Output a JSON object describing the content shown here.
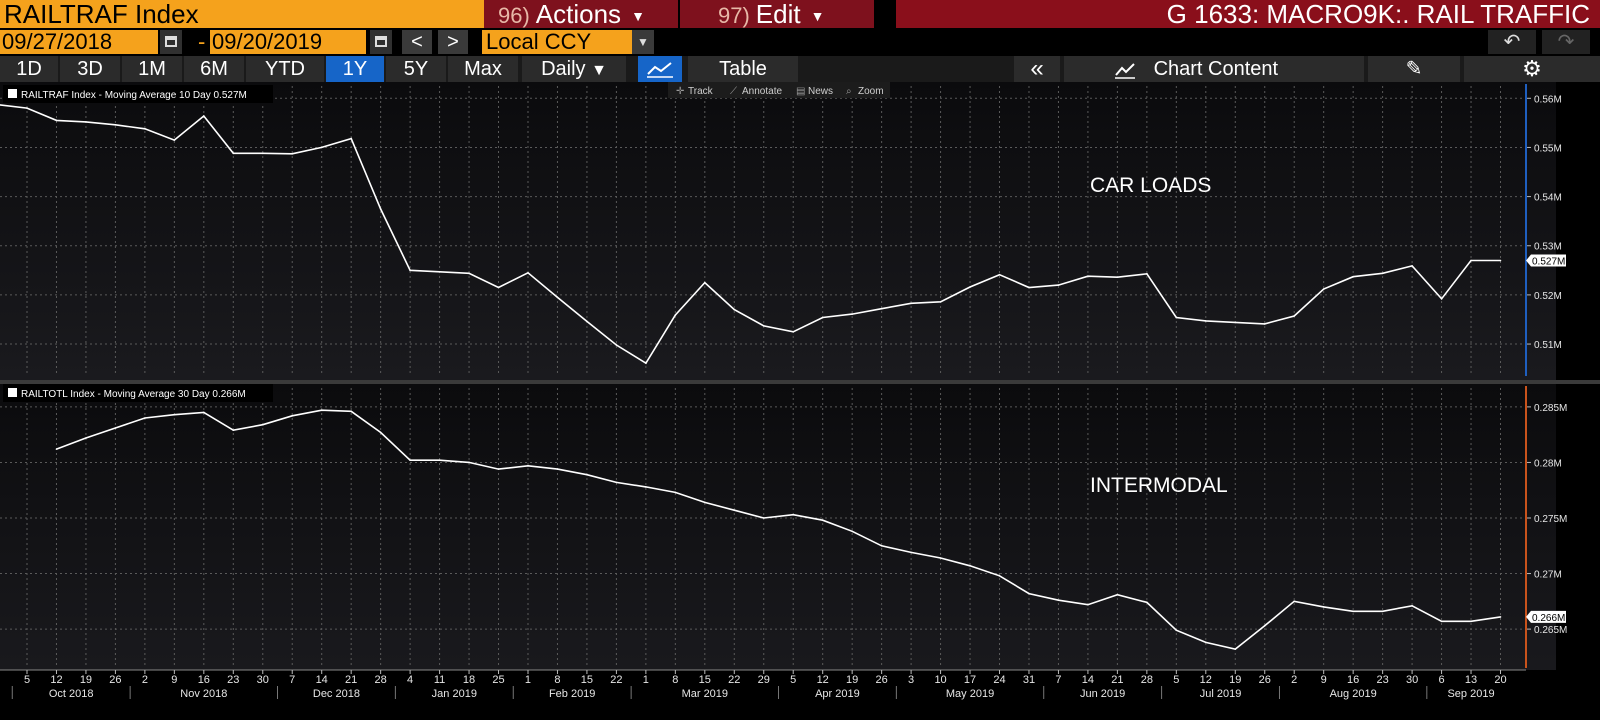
{
  "header": {
    "ticker": "RAILTRAF Index",
    "actions_num": "96)",
    "actions_label": "Actions",
    "edit_num": "97)",
    "edit_label": "Edit",
    "title": "G 1633: MACRO9K:. RAIL TRAFFIC"
  },
  "toolbar": {
    "start_date": "09/27/2018",
    "end_date": "09/20/2019",
    "date_sep": "-",
    "currency": "Local CCY",
    "prev": "<",
    "next": ">"
  },
  "ranges": [
    "1D",
    "3D",
    "1M",
    "6M",
    "YTD",
    "1Y",
    "5Y",
    "Max"
  ],
  "active_range": "1Y",
  "frequency": "Daily",
  "table_label": "Table",
  "chart_content_label": "Chart Content",
  "chart_tools": [
    "Track",
    "Annotate",
    "News",
    "Zoom"
  ],
  "colors": {
    "accent_orange": "#f5a21c",
    "menu_red": "#7e111d",
    "active_blue": "#1665c8",
    "line": "#ffffff",
    "grid": "#5a5a5a",
    "axis_right_top": "#1f5fbf",
    "axis_right_bottom": "#c9531c"
  },
  "chart_data": [
    {
      "type": "line",
      "panel": "top",
      "legend": "RAILTRAF Index - Moving Average 10 Day 0.527M",
      "annotation": "CAR LOADS",
      "last_value_label": "0.527M",
      "y_ticks": [
        "0.51M",
        "0.52M",
        "0.53M",
        "0.54M",
        "0.55M",
        "0.56M"
      ],
      "ylim": [
        0.5035,
        0.5625
      ],
      "x": [
        "2018-09-27",
        "2018-10-05",
        "2018-10-12",
        "2018-10-19",
        "2018-10-26",
        "2018-11-02",
        "2018-11-09",
        "2018-11-16",
        "2018-11-23",
        "2018-11-30",
        "2018-12-07",
        "2018-12-14",
        "2018-12-21",
        "2018-12-28",
        "2019-01-04",
        "2019-01-11",
        "2019-01-18",
        "2019-01-25",
        "2019-02-01",
        "2019-02-08",
        "2019-02-15",
        "2019-02-22",
        "2019-03-01",
        "2019-03-08",
        "2019-03-15",
        "2019-03-22",
        "2019-03-29",
        "2019-04-05",
        "2019-04-12",
        "2019-04-19",
        "2019-04-26",
        "2019-05-03",
        "2019-05-10",
        "2019-05-17",
        "2019-05-24",
        "2019-05-31",
        "2019-06-07",
        "2019-06-14",
        "2019-06-21",
        "2019-06-28",
        "2019-07-05",
        "2019-07-12",
        "2019-07-19",
        "2019-07-26",
        "2019-08-02",
        "2019-08-09",
        "2019-08-16",
        "2019-08-23",
        "2019-08-30",
        "2019-09-06",
        "2019-09-13",
        "2019-09-20"
      ],
      "values": [
        0.5588,
        0.558,
        0.5555,
        0.5552,
        0.5546,
        0.5538,
        0.5515,
        0.5564,
        0.5488,
        0.5488,
        0.5487,
        0.55,
        0.5518,
        0.5375,
        0.525,
        0.5247,
        0.5244,
        0.5215,
        0.5245,
        0.5195,
        0.5146,
        0.5098,
        0.5061,
        0.5159,
        0.5225,
        0.517,
        0.5137,
        0.5125,
        0.5154,
        0.5161,
        0.5172,
        0.5183,
        0.5186,
        0.5216,
        0.5241,
        0.5215,
        0.522,
        0.5238,
        0.5236,
        0.5243,
        0.5154,
        0.5147,
        0.5144,
        0.5141,
        0.5157,
        0.5212,
        0.5237,
        0.5244,
        0.5259,
        0.5192,
        0.527,
        0.527
      ]
    },
    {
      "type": "line",
      "panel": "bottom",
      "legend": "RAILTOTL Index - Moving Average 30 Day 0.266M",
      "annotation": "INTERMODAL",
      "last_value_label": "0.266M",
      "y_ticks": [
        "0.265M",
        "0.27M",
        "0.275M",
        "0.28M",
        "0.285M"
      ],
      "ylim": [
        0.2615,
        0.2867
      ],
      "x": [
        "2018-10-12",
        "2018-10-19",
        "2018-10-26",
        "2018-11-02",
        "2018-11-09",
        "2018-11-16",
        "2018-11-23",
        "2018-11-30",
        "2018-12-07",
        "2018-12-14",
        "2018-12-21",
        "2018-12-28",
        "2019-01-04",
        "2019-01-11",
        "2019-01-18",
        "2019-01-25",
        "2019-02-01",
        "2019-02-08",
        "2019-02-15",
        "2019-02-22",
        "2019-03-01",
        "2019-03-08",
        "2019-03-15",
        "2019-03-22",
        "2019-03-29",
        "2019-04-05",
        "2019-04-12",
        "2019-04-19",
        "2019-04-26",
        "2019-05-03",
        "2019-05-10",
        "2019-05-17",
        "2019-05-24",
        "2019-05-31",
        "2019-06-07",
        "2019-06-14",
        "2019-06-21",
        "2019-06-28",
        "2019-07-05",
        "2019-07-12",
        "2019-07-19",
        "2019-07-26",
        "2019-08-02",
        "2019-08-09",
        "2019-08-16",
        "2019-08-23",
        "2019-08-30",
        "2019-09-06",
        "2019-09-13",
        "2019-09-20"
      ],
      "values": [
        0.2812,
        0.2822,
        0.2831,
        0.284,
        0.2843,
        0.2845,
        0.2829,
        0.2834,
        0.2842,
        0.2847,
        0.2846,
        0.2827,
        0.2802,
        0.2802,
        0.28,
        0.2794,
        0.2797,
        0.2794,
        0.2789,
        0.2782,
        0.2778,
        0.2773,
        0.2764,
        0.2757,
        0.275,
        0.2753,
        0.2748,
        0.2738,
        0.2725,
        0.2719,
        0.2714,
        0.2707,
        0.2698,
        0.2682,
        0.2676,
        0.2672,
        0.2681,
        0.2674,
        0.2649,
        0.2638,
        0.2632,
        0.2653,
        0.2675,
        0.267,
        0.2666,
        0.2666,
        0.2671,
        0.2657,
        0.2657,
        0.2661
      ]
    }
  ],
  "x_axis": {
    "day_labels": [
      "5",
      "12",
      "19",
      "26",
      "2",
      "9",
      "16",
      "23",
      "30",
      "7",
      "14",
      "21",
      "28",
      "4",
      "11",
      "18",
      "25",
      "1",
      "8",
      "15",
      "22",
      "1",
      "8",
      "15",
      "22",
      "29",
      "5",
      "12",
      "19",
      "26",
      "3",
      "10",
      "17",
      "24",
      "31",
      "7",
      "14",
      "21",
      "28",
      "5",
      "12",
      "19",
      "26",
      "2",
      "9",
      "16",
      "23",
      "30",
      "6",
      "13",
      "20"
    ],
    "month_labels": [
      "Oct 2018",
      "Nov 2018",
      "Dec 2018",
      "Jan 2019",
      "Feb 2019",
      "Mar 2019",
      "Apr 2019",
      "May 2019",
      "Jun 2019",
      "Jul 2019",
      "Aug 2019",
      "Sep 2019"
    ]
  }
}
